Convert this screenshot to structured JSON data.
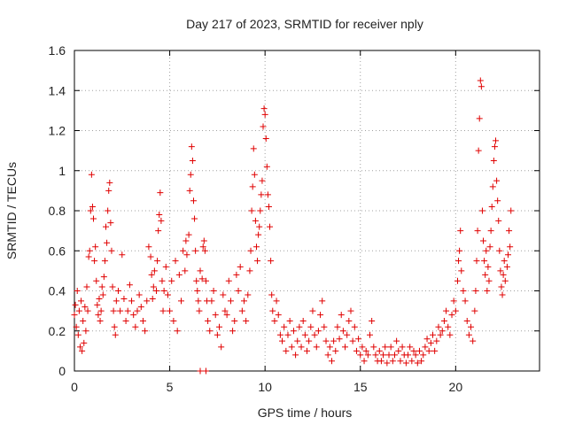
{
  "chart_data": {
    "type": "scatter",
    "title": "Day 217 of 2023, SRMTID for receiver nply",
    "xlabel": "GPS time / hours",
    "ylabel": "SRMTID / TECUs",
    "xlim": [
      0,
      24.4
    ],
    "ylim": [
      0,
      1.6
    ],
    "xticks": [
      0,
      5,
      10,
      15,
      20
    ],
    "xtick_labels": [
      "0",
      "5",
      "10",
      "15",
      "20"
    ],
    "yticks": [
      0,
      0.2,
      0.4,
      0.6,
      0.8,
      1.0,
      1.2,
      1.4,
      1.6
    ],
    "ytick_labels": [
      "0",
      "0.2",
      "0.4",
      "0.6",
      "0.8",
      "1",
      "1.2",
      "1.4",
      "1.6"
    ],
    "grid": true,
    "marker": "+",
    "color": "#e00000",
    "series": [
      {
        "name": "SRMTID",
        "points": [
          [
            0.0,
            0.28
          ],
          [
            0.05,
            0.33
          ],
          [
            0.1,
            0.22
          ],
          [
            0.15,
            0.4
          ],
          [
            0.2,
            0.18
          ],
          [
            0.25,
            0.3
          ],
          [
            0.3,
            0.12
          ],
          [
            0.35,
            0.35
          ],
          [
            0.4,
            0.1
          ],
          [
            0.45,
            0.25
          ],
          [
            0.5,
            0.14
          ],
          [
            0.55,
            0.32
          ],
          [
            0.6,
            0.2
          ],
          [
            0.65,
            0.42
          ],
          [
            0.7,
            0.3
          ],
          [
            0.75,
            0.57
          ],
          [
            0.8,
            0.6
          ],
          [
            0.85,
            0.8
          ],
          [
            0.9,
            0.98
          ],
          [
            0.95,
            0.82
          ],
          [
            1.0,
            0.76
          ],
          [
            1.05,
            0.55
          ],
          [
            1.1,
            0.62
          ],
          [
            1.15,
            0.45
          ],
          [
            1.2,
            0.33
          ],
          [
            1.25,
            0.28
          ],
          [
            1.3,
            0.36
          ],
          [
            1.35,
            0.25
          ],
          [
            1.4,
            0.3
          ],
          [
            1.45,
            0.42
          ],
          [
            1.5,
            0.38
          ],
          [
            1.55,
            0.47
          ],
          [
            1.6,
            0.55
          ],
          [
            1.65,
            0.72
          ],
          [
            1.7,
            0.64
          ],
          [
            1.75,
            0.8
          ],
          [
            1.8,
            0.9
          ],
          [
            1.85,
            0.94
          ],
          [
            1.9,
            0.74
          ],
          [
            1.95,
            0.6
          ],
          [
            2.0,
            0.42
          ],
          [
            2.05,
            0.3
          ],
          [
            2.1,
            0.22
          ],
          [
            2.15,
            0.18
          ],
          [
            2.2,
            0.35
          ],
          [
            2.3,
            0.4
          ],
          [
            2.4,
            0.3
          ],
          [
            2.5,
            0.58
          ],
          [
            2.6,
            0.36
          ],
          [
            2.7,
            0.25
          ],
          [
            2.8,
            0.3
          ],
          [
            2.9,
            0.43
          ],
          [
            3.0,
            0.35
          ],
          [
            3.1,
            0.28
          ],
          [
            3.2,
            0.22
          ],
          [
            3.3,
            0.3
          ],
          [
            3.4,
            0.38
          ],
          [
            3.5,
            0.32
          ],
          [
            3.6,
            0.25
          ],
          [
            3.7,
            0.2
          ],
          [
            3.8,
            0.35
          ],
          [
            3.9,
            0.62
          ],
          [
            4.0,
            0.57
          ],
          [
            4.05,
            0.48
          ],
          [
            4.1,
            0.36
          ],
          [
            4.15,
            0.42
          ],
          [
            4.2,
            0.5
          ],
          [
            4.3,
            0.4
          ],
          [
            4.35,
            0.55
          ],
          [
            4.4,
            0.7
          ],
          [
            4.45,
            0.78
          ],
          [
            4.5,
            0.89
          ],
          [
            4.55,
            0.75
          ],
          [
            4.6,
            0.45
          ],
          [
            4.65,
            0.3
          ],
          [
            4.7,
            0.4
          ],
          [
            4.8,
            0.52
          ],
          [
            4.9,
            0.38
          ],
          [
            5.0,
            0.3
          ],
          [
            5.1,
            0.45
          ],
          [
            5.2,
            0.25
          ],
          [
            5.3,
            0.55
          ],
          [
            5.4,
            0.2
          ],
          [
            5.5,
            0.48
          ],
          [
            5.6,
            0.35
          ],
          [
            5.7,
            0.6
          ],
          [
            5.8,
            0.5
          ],
          [
            5.85,
            0.65
          ],
          [
            5.9,
            0.58
          ],
          [
            6.0,
            0.68
          ],
          [
            6.05,
            0.9
          ],
          [
            6.1,
            0.98
          ],
          [
            6.15,
            1.12
          ],
          [
            6.2,
            1.05
          ],
          [
            6.25,
            0.85
          ],
          [
            6.3,
            0.76
          ],
          [
            6.35,
            0.6
          ],
          [
            6.4,
            0.45
          ],
          [
            6.45,
            0.4
          ],
          [
            6.5,
            0.35
          ],
          [
            6.55,
            0.3
          ],
          [
            6.6,
            0.5
          ],
          [
            6.7,
            0.46
          ],
          [
            6.75,
            0.62
          ],
          [
            6.8,
            0.65
          ],
          [
            6.85,
            0.6
          ],
          [
            6.9,
            0.45
          ],
          [
            6.95,
            0.35
          ],
          [
            7.0,
            0.25
          ],
          [
            7.1,
            0.2
          ],
          [
            7.2,
            0.35
          ],
          [
            7.3,
            0.4
          ],
          [
            7.4,
            0.28
          ],
          [
            7.5,
            0.18
          ],
          [
            7.6,
            0.22
          ],
          [
            7.7,
            0.12
          ],
          [
            7.8,
            0.38
          ],
          [
            7.9,
            0.3
          ],
          [
            8.0,
            0.28
          ],
          [
            8.1,
            0.45
          ],
          [
            8.2,
            0.35
          ],
          [
            8.3,
            0.2
          ],
          [
            8.4,
            0.25
          ],
          [
            8.5,
            0.48
          ],
          [
            8.6,
            0.4
          ],
          [
            8.7,
            0.52
          ],
          [
            8.8,
            0.3
          ],
          [
            8.9,
            0.35
          ],
          [
            9.0,
            0.25
          ],
          [
            9.1,
            0.38
          ],
          [
            9.2,
            0.5
          ],
          [
            9.25,
            0.6
          ],
          [
            9.3,
            0.8
          ],
          [
            9.35,
            0.92
          ],
          [
            9.4,
            1.11
          ],
          [
            9.45,
            0.98
          ],
          [
            9.5,
            0.75
          ],
          [
            9.55,
            0.62
          ],
          [
            9.6,
            0.55
          ],
          [
            9.65,
            0.68
          ],
          [
            9.7,
            0.72
          ],
          [
            9.75,
            0.8
          ],
          [
            9.8,
            0.88
          ],
          [
            9.85,
            0.95
          ],
          [
            9.9,
            1.22
          ],
          [
            9.95,
            1.31
          ],
          [
            10.0,
            1.28
          ],
          [
            10.05,
            1.16
          ],
          [
            10.1,
            1.02
          ],
          [
            10.15,
            0.88
          ],
          [
            10.2,
            0.82
          ],
          [
            10.25,
            0.72
          ],
          [
            10.3,
            0.55
          ],
          [
            10.35,
            0.38
          ],
          [
            10.4,
            0.3
          ],
          [
            10.5,
            0.25
          ],
          [
            10.6,
            0.35
          ],
          [
            10.7,
            0.28
          ],
          [
            10.8,
            0.18
          ],
          [
            10.9,
            0.15
          ],
          [
            11.0,
            0.22
          ],
          [
            11.1,
            0.1
          ],
          [
            11.2,
            0.18
          ],
          [
            11.3,
            0.25
          ],
          [
            11.4,
            0.12
          ],
          [
            11.5,
            0.2
          ],
          [
            11.6,
            0.08
          ],
          [
            11.7,
            0.15
          ],
          [
            11.8,
            0.22
          ],
          [
            11.9,
            0.12
          ],
          [
            12.0,
            0.25
          ],
          [
            12.1,
            0.18
          ],
          [
            12.2,
            0.1
          ],
          [
            12.3,
            0.15
          ],
          [
            12.4,
            0.22
          ],
          [
            12.5,
            0.3
          ],
          [
            12.6,
            0.18
          ],
          [
            12.7,
            0.12
          ],
          [
            12.8,
            0.2
          ],
          [
            12.9,
            0.28
          ],
          [
            13.0,
            0.35
          ],
          [
            13.1,
            0.22
          ],
          [
            13.2,
            0.15
          ],
          [
            13.3,
            0.08
          ],
          [
            13.4,
            0.12
          ],
          [
            13.5,
            0.05
          ],
          [
            13.6,
            0.15
          ],
          [
            13.7,
            0.1
          ],
          [
            13.8,
            0.22
          ],
          [
            13.9,
            0.16
          ],
          [
            14.0,
            0.28
          ],
          [
            14.1,
            0.2
          ],
          [
            14.2,
            0.12
          ],
          [
            14.3,
            0.18
          ],
          [
            14.4,
            0.25
          ],
          [
            14.5,
            0.3
          ],
          [
            14.6,
            0.15
          ],
          [
            14.7,
            0.22
          ],
          [
            14.8,
            0.1
          ],
          [
            14.9,
            0.16
          ],
          [
            15.0,
            0.08
          ],
          [
            15.1,
            0.12
          ],
          [
            15.2,
            0.05
          ],
          [
            15.3,
            0.1
          ],
          [
            15.4,
            0.08
          ],
          [
            15.5,
            0.18
          ],
          [
            15.6,
            0.25
          ],
          [
            15.7,
            0.12
          ],
          [
            15.8,
            0.08
          ],
          [
            15.9,
            0.05
          ],
          [
            16.0,
            0.1
          ],
          [
            16.1,
            0.05
          ],
          [
            16.2,
            0.08
          ],
          [
            16.3,
            0.12
          ],
          [
            16.4,
            0.04
          ],
          [
            16.5,
            0.08
          ],
          [
            16.6,
            0.12
          ],
          [
            16.7,
            0.05
          ],
          [
            16.8,
            0.08
          ],
          [
            16.9,
            0.15
          ],
          [
            17.0,
            0.1
          ],
          [
            17.1,
            0.05
          ],
          [
            17.2,
            0.12
          ],
          [
            17.3,
            0.08
          ],
          [
            17.4,
            0.04
          ],
          [
            17.5,
            0.08
          ],
          [
            17.6,
            0.12
          ],
          [
            17.7,
            0.05
          ],
          [
            17.8,
            0.1
          ],
          [
            17.9,
            0.08
          ],
          [
            18.0,
            0.04
          ],
          [
            18.1,
            0.1
          ],
          [
            18.2,
            0.05
          ],
          [
            18.3,
            0.08
          ],
          [
            18.4,
            0.12
          ],
          [
            18.5,
            0.16
          ],
          [
            18.6,
            0.1
          ],
          [
            18.7,
            0.14
          ],
          [
            18.8,
            0.18
          ],
          [
            18.9,
            0.1
          ],
          [
            19.0,
            0.15
          ],
          [
            19.1,
            0.22
          ],
          [
            19.2,
            0.18
          ],
          [
            19.3,
            0.2
          ],
          [
            19.4,
            0.25
          ],
          [
            19.5,
            0.3
          ],
          [
            19.6,
            0.22
          ],
          [
            19.7,
            0.18
          ],
          [
            19.8,
            0.28
          ],
          [
            19.9,
            0.35
          ],
          [
            20.0,
            0.3
          ],
          [
            20.1,
            0.45
          ],
          [
            20.15,
            0.55
          ],
          [
            20.2,
            0.6
          ],
          [
            20.25,
            0.7
          ],
          [
            20.3,
            0.5
          ],
          [
            20.4,
            0.4
          ],
          [
            20.5,
            0.35
          ],
          [
            20.6,
            0.25
          ],
          [
            20.7,
            0.18
          ],
          [
            20.8,
            0.22
          ],
          [
            20.9,
            0.15
          ],
          [
            21.0,
            0.3
          ],
          [
            21.05,
            0.4
          ],
          [
            21.1,
            0.55
          ],
          [
            21.15,
            0.7
          ],
          [
            21.2,
            1.1
          ],
          [
            21.25,
            1.26
          ],
          [
            21.3,
            1.45
          ],
          [
            21.35,
            1.42
          ],
          [
            21.4,
            0.8
          ],
          [
            21.45,
            0.65
          ],
          [
            21.5,
            0.55
          ],
          [
            21.55,
            0.48
          ],
          [
            21.6,
            0.6
          ],
          [
            21.65,
            0.4
          ],
          [
            21.7,
            0.52
          ],
          [
            21.75,
            0.45
          ],
          [
            21.8,
            0.62
          ],
          [
            21.85,
            0.7
          ],
          [
            21.9,
            0.82
          ],
          [
            21.95,
            0.92
          ],
          [
            22.0,
            1.05
          ],
          [
            22.05,
            1.12
          ],
          [
            22.1,
            1.15
          ],
          [
            22.15,
            0.95
          ],
          [
            22.2,
            0.85
          ],
          [
            22.25,
            0.75
          ],
          [
            22.3,
            0.6
          ],
          [
            22.35,
            0.5
          ],
          [
            22.4,
            0.42
          ],
          [
            22.45,
            0.38
          ],
          [
            22.5,
            0.48
          ],
          [
            22.55,
            0.55
          ],
          [
            22.6,
            0.45
          ],
          [
            22.7,
            0.52
          ],
          [
            22.75,
            0.58
          ],
          [
            22.8,
            0.7
          ],
          [
            22.85,
            0.62
          ],
          [
            22.9,
            0.8
          ],
          [
            6.6,
            0.0
          ],
          [
            6.9,
            0.0
          ]
        ]
      }
    ]
  }
}
